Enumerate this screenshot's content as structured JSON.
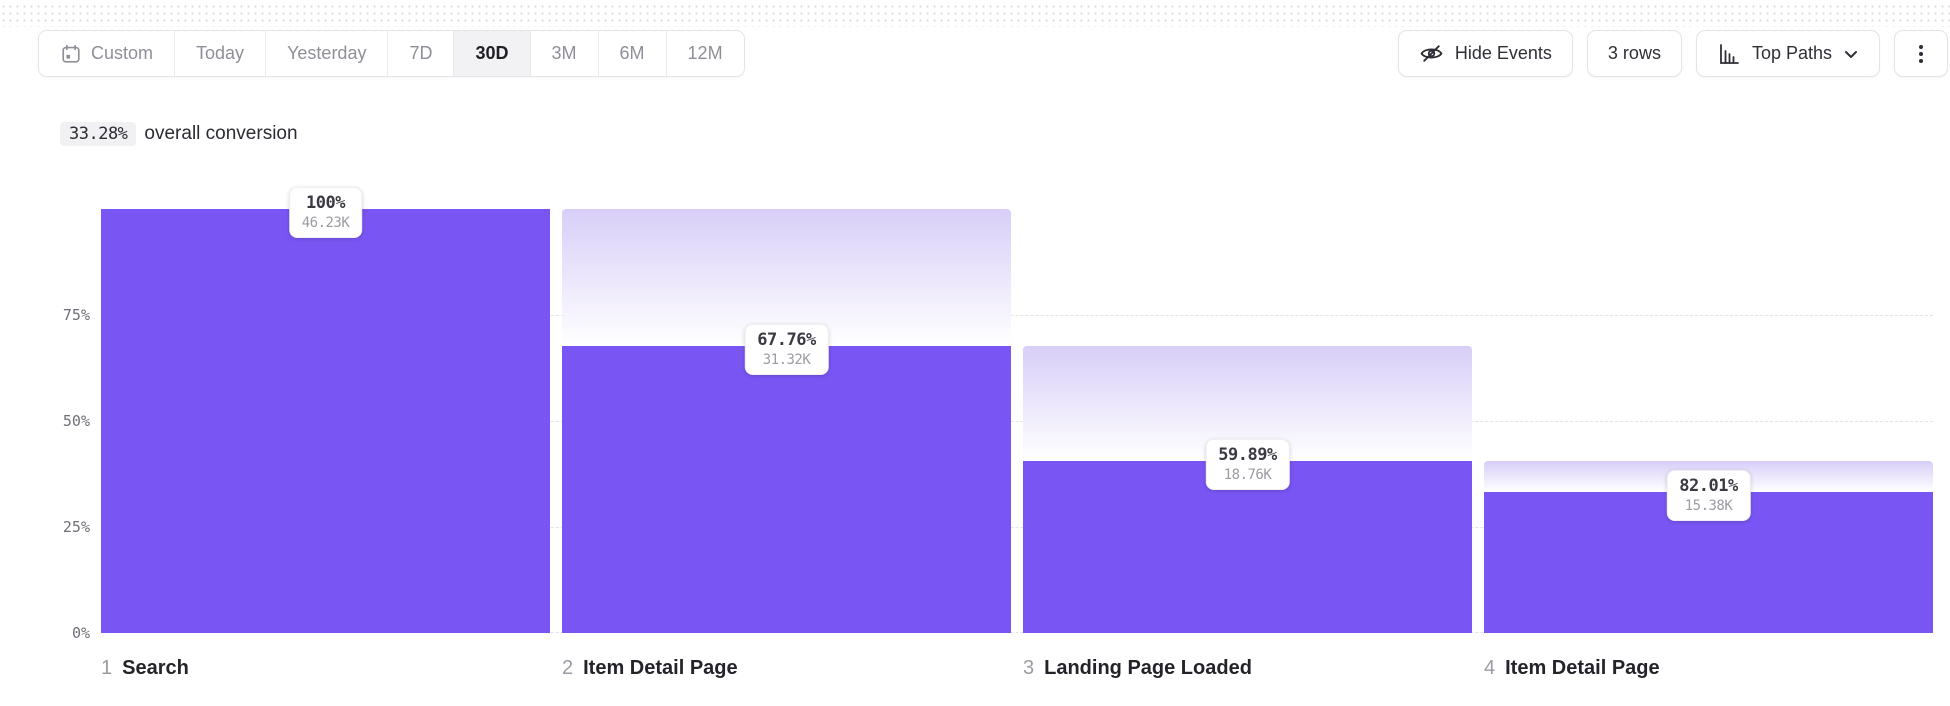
{
  "toolbar": {
    "date_ranges": [
      {
        "label": "Custom",
        "selected": false,
        "icon": "calendar-icon"
      },
      {
        "label": "Today",
        "selected": false
      },
      {
        "label": "Yesterday",
        "selected": false
      },
      {
        "label": "7D",
        "selected": false
      },
      {
        "label": "30D",
        "selected": true
      },
      {
        "label": "3M",
        "selected": false
      },
      {
        "label": "6M",
        "selected": false
      },
      {
        "label": "12M",
        "selected": false
      }
    ],
    "hide_events_label": "Hide Events",
    "rows_label": "3 rows",
    "top_paths_label": "Top Paths",
    "icons": {
      "date_picker": "calendar-icon",
      "hide_events": "eye-off-icon",
      "top_paths": "bar-chart-icon",
      "top_paths_caret": "chevron-down-icon",
      "more": "kebab-menu-icon"
    }
  },
  "summary": {
    "rate": "33.28%",
    "text": "overall conversion"
  },
  "chart_data": {
    "type": "bar",
    "subtype": "funnel",
    "title": "",
    "xlabel": "",
    "ylabel": "",
    "ylim": [
      0,
      100
    ],
    "grid": "horizontal-dashed",
    "y_ticks": [
      "75%",
      "50%",
      "25%",
      "0%"
    ],
    "y_tick_values": [
      75,
      50,
      25,
      0
    ],
    "overall_conversion_pct": 33.28,
    "steps": [
      {
        "index": "1",
        "name": "Search",
        "step_pct_label": "100%",
        "count_label": "46.23K",
        "step_pct": 100,
        "abs_pct": 100,
        "count": 46230
      },
      {
        "index": "2",
        "name": "Item Detail Page",
        "step_pct_label": "67.76%",
        "count_label": "31.32K",
        "step_pct": 67.76,
        "abs_pct": 67.75,
        "count": 31320
      },
      {
        "index": "3",
        "name": "Landing Page Loaded",
        "step_pct_label": "59.89%",
        "count_label": "18.76K",
        "step_pct": 59.89,
        "abs_pct": 40.58,
        "count": 18760
      },
      {
        "index": "4",
        "name": "Item Detail Page",
        "step_pct_label": "82.01%",
        "count_label": "15.38K",
        "step_pct": 82.01,
        "abs_pct": 33.27,
        "count": 15380
      }
    ],
    "colors": {
      "bar": "#7956F3",
      "fade_top": "#D8CEF8",
      "fade_bottom": "#FFFFFF",
      "gridline": "#e2e2e8"
    }
  }
}
